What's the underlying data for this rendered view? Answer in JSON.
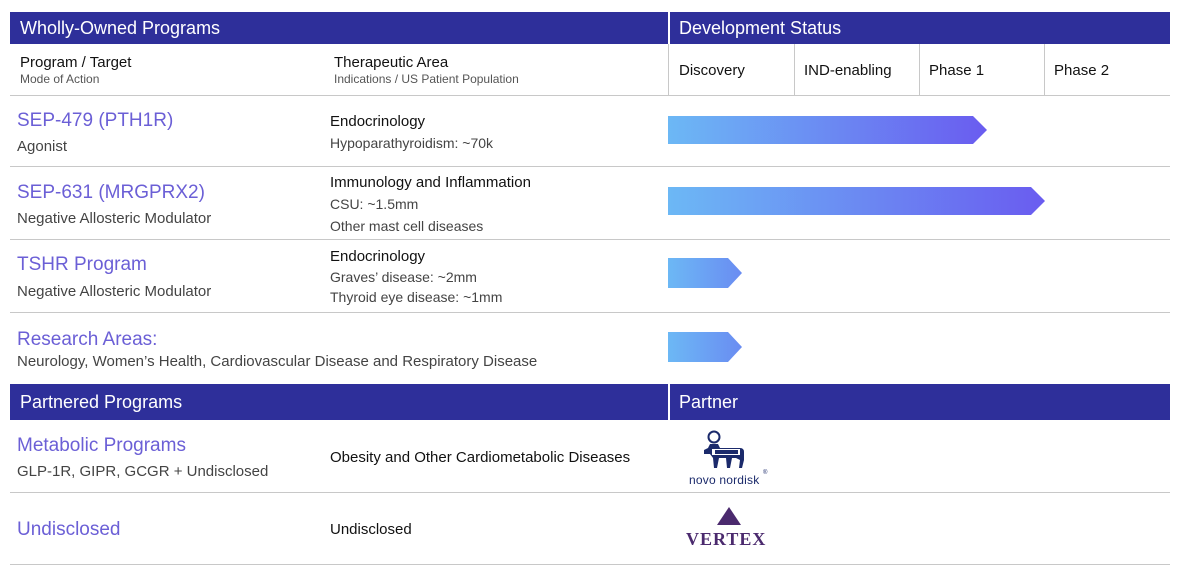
{
  "colors": {
    "band": "#2e2f9a",
    "program_name": "#6b5fd6",
    "arrow_start": "#6cb8f5",
    "arrow_end": "#6a5cf0",
    "novo": "#1b2a6b",
    "vertex": "#4b2a6e"
  },
  "owned": {
    "title": "Wholly-Owned Programs",
    "status_title": "Development Status",
    "col_program": "Program / Target",
    "col_program_sub": "Mode of Action",
    "col_area": "Therapeutic Area",
    "col_area_sub": "Indications / US Patient Population",
    "stages": [
      "Discovery",
      "IND-enabling",
      "Phase 1",
      "Phase 2"
    ],
    "rows": [
      {
        "name": "SEP-479 (PTH1R)",
        "moa": "Agonist",
        "area": "Endocrinology",
        "details": [
          "Hypoparathyroidism: ~70k"
        ],
        "progress_stage": "Phase 1"
      },
      {
        "name": "SEP-631 (MRGPRX2)",
        "moa": "Negative Allosteric Modulator",
        "area": "Immunology and Inflammation",
        "details": [
          "CSU: ~1.5mm",
          "Other mast cell diseases"
        ],
        "progress_stage": "Phase 2"
      },
      {
        "name": "TSHR Program",
        "moa": "Negative Allosteric Modulator",
        "area": "Endocrinology",
        "details": [
          "Graves’ disease: ~2mm",
          "Thyroid eye disease: ~1mm"
        ],
        "progress_stage": "Discovery"
      },
      {
        "name": "Research Areas:",
        "moa": "Neurology, Women’s Health, Cardiovascular Disease and Respiratory Disease",
        "progress_stage": "Discovery"
      }
    ]
  },
  "partnered": {
    "title": "Partnered Programs",
    "partner_title": "Partner",
    "rows": [
      {
        "name": "Metabolic Programs",
        "targets": "GLP-1R, GIPR, GCGR + Undisclosed",
        "area": "Obesity and Other Cardiometabolic Diseases",
        "partner_logo": "novo-nordisk-logo",
        "partner_text": "novo nordisk"
      },
      {
        "name": "Undisclosed",
        "area": "Undisclosed",
        "partner_logo": "vertex-logo",
        "partner_text": "VERTEX"
      }
    ]
  }
}
